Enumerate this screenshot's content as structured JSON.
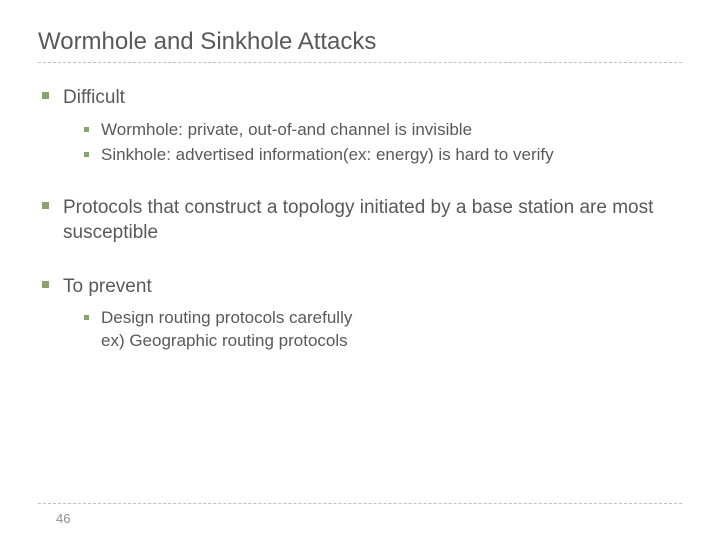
{
  "title": "Wormhole and Sinkhole Attacks",
  "items": [
    {
      "text": "Difficult",
      "sub": [
        "Wormhole: private, out-of-and channel is invisible",
        "Sinkhole: advertised information(ex: energy) is hard to verify"
      ]
    },
    {
      "text": "Protocols that construct a topology initiated by a base station are most susceptible",
      "sub": []
    },
    {
      "text": "To prevent",
      "sub": [
        "Design routing protocols carefully\nex) Geographic routing protocols"
      ]
    }
  ],
  "page_number": "46",
  "colors": {
    "bullet": "#8aa171",
    "text": "#595959",
    "dash": "#bfbfbf",
    "background": "#ffffff"
  }
}
